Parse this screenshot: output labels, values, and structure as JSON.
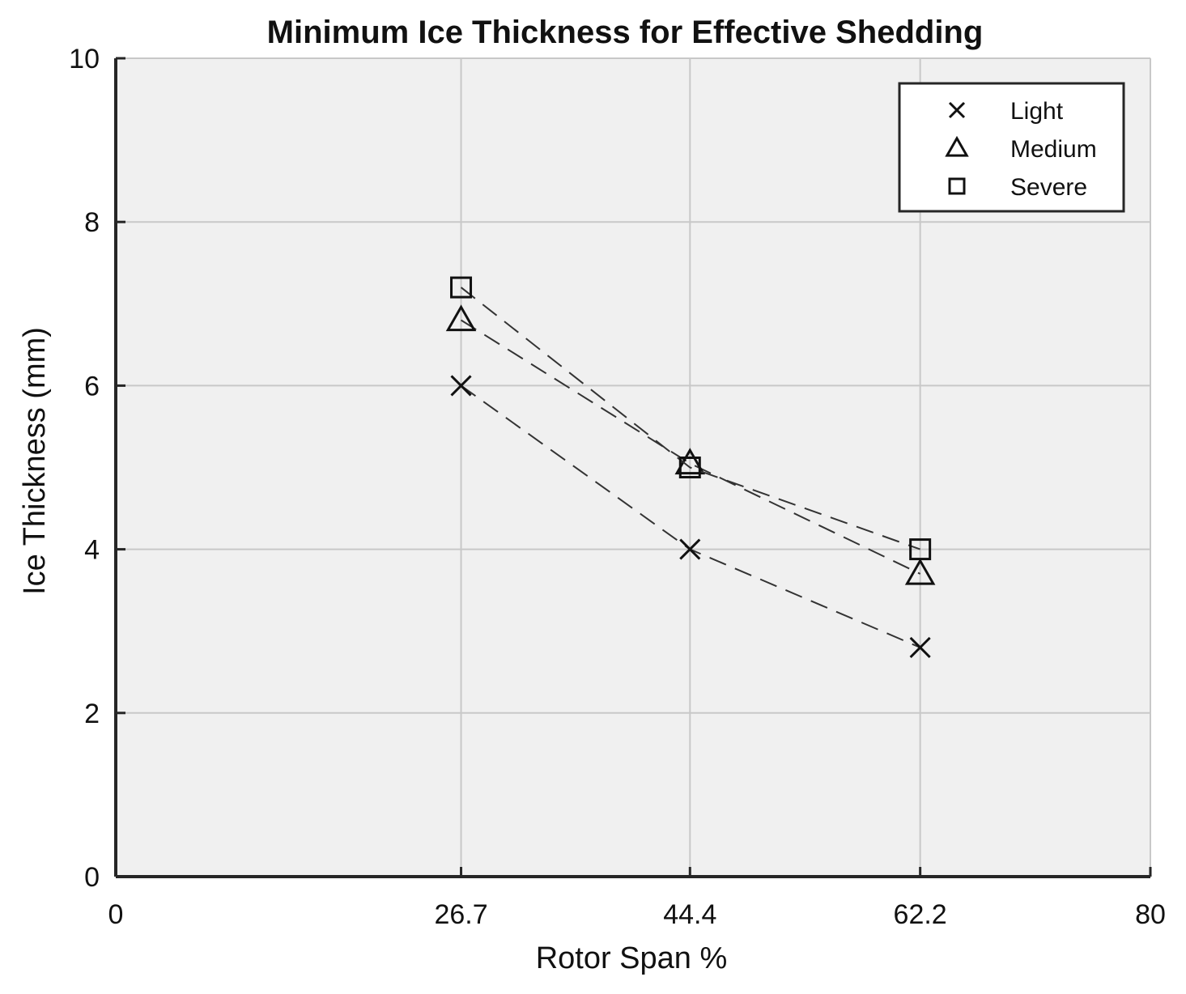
{
  "chart_data": {
    "type": "line",
    "title": "Minimum Ice Thickness for Effective Shedding",
    "xlabel": "Rotor Span %",
    "ylabel": "Ice Thickness (mm)",
    "xlim": [
      0,
      80
    ],
    "ylim": [
      0,
      10
    ],
    "xticks": [
      0,
      26.7,
      44.4,
      62.2,
      80
    ],
    "xtick_labels": [
      "0",
      "26.7",
      "44.4",
      "62.2",
      "80"
    ],
    "yticks": [
      0,
      2,
      4,
      6,
      8,
      10
    ],
    "ytick_labels": [
      "0",
      "2",
      "4",
      "6",
      "8",
      "10"
    ],
    "grid": true,
    "legend_position": "top-right",
    "x": [
      26.7,
      44.4,
      62.2
    ],
    "series": [
      {
        "name": "Light",
        "marker": "x",
        "values": [
          6.0,
          4.0,
          2.8
        ]
      },
      {
        "name": "Medium",
        "marker": "triangle",
        "values": [
          6.8,
          5.05,
          3.7
        ]
      },
      {
        "name": "Severe",
        "marker": "square",
        "values": [
          7.2,
          5.0,
          4.0
        ]
      }
    ],
    "colors": {
      "plot_background": "#f0f0f0",
      "line": "#333333",
      "marker": "#111111"
    }
  }
}
